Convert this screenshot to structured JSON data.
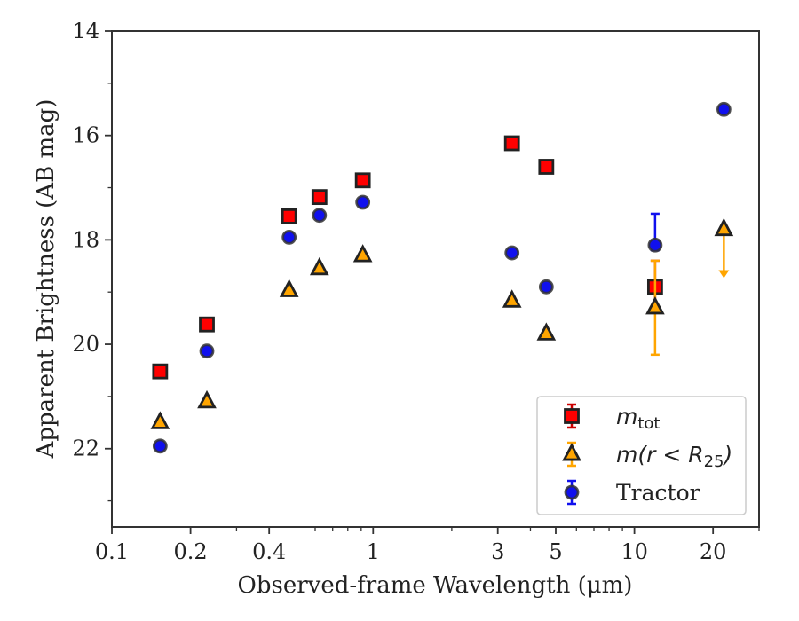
{
  "chart_data": {
    "type": "scatter",
    "xlabel": "Observed-frame Wavelength (μm)",
    "ylabel": "Apparent Brightness (AB mag)",
    "x_scale": "log",
    "xlim": [
      0.1,
      30
    ],
    "ylim": [
      23.5,
      14
    ],
    "y_inverted": true,
    "grid": false,
    "legend_position": "bottom-right",
    "x_ticks": [
      {
        "value": 0.1,
        "label": "0.1"
      },
      {
        "value": 0.2,
        "label": "0.2"
      },
      {
        "value": 0.4,
        "label": "0.4"
      },
      {
        "value": 1,
        "label": "1"
      },
      {
        "value": 3,
        "label": "3"
      },
      {
        "value": 5,
        "label": "5"
      },
      {
        "value": 10,
        "label": "10"
      },
      {
        "value": 20,
        "label": "20"
      }
    ],
    "y_ticks": [
      {
        "value": 14,
        "label": "14"
      },
      {
        "value": 16,
        "label": "16"
      },
      {
        "value": 18,
        "label": "18"
      },
      {
        "value": 20,
        "label": "20"
      },
      {
        "value": 22,
        "label": "22"
      }
    ],
    "series": [
      {
        "name": "m_tot",
        "marker": "square",
        "color": "#ff0000",
        "edge_color": "#222222",
        "error_color": "#cc0000",
        "points": [
          {
            "x": 0.153,
            "y": 20.52
          },
          {
            "x": 0.231,
            "y": 19.62
          },
          {
            "x": 0.477,
            "y": 17.55
          },
          {
            "x": 0.623,
            "y": 17.18
          },
          {
            "x": 0.913,
            "y": 16.86
          },
          {
            "x": 3.4,
            "y": 16.15
          },
          {
            "x": 4.6,
            "y": 16.6
          },
          {
            "x": 12.0,
            "y": 18.9,
            "err_low": 0.5,
            "err_high": 0.5
          }
        ]
      },
      {
        "name": "m(r < R25)",
        "marker": "triangle",
        "color": "#ffa500",
        "edge_color": "#222222",
        "error_color": "#ffa500",
        "points": [
          {
            "x": 0.153,
            "y": 21.5
          },
          {
            "x": 0.231,
            "y": 21.1
          },
          {
            "x": 0.477,
            "y": 18.97
          },
          {
            "x": 0.623,
            "y": 18.55
          },
          {
            "x": 0.913,
            "y": 18.3
          },
          {
            "x": 3.4,
            "y": 19.17
          },
          {
            "x": 4.6,
            "y": 19.8
          },
          {
            "x": 12.0,
            "y": 19.3,
            "err_low": 0.9,
            "err_high": 0.9
          },
          {
            "x": 22.0,
            "y": 17.8,
            "upper_limit_to": 18.7
          }
        ]
      },
      {
        "name": "Tractor",
        "marker": "circle",
        "color": "#1010ee",
        "edge_color": "#333333",
        "error_color": "#1010ee",
        "points": [
          {
            "x": 0.153,
            "y": 21.95
          },
          {
            "x": 0.231,
            "y": 20.13
          },
          {
            "x": 0.477,
            "y": 17.95
          },
          {
            "x": 0.623,
            "y": 17.53
          },
          {
            "x": 0.913,
            "y": 17.28
          },
          {
            "x": 3.4,
            "y": 18.25
          },
          {
            "x": 4.6,
            "y": 18.9
          },
          {
            "x": 12.0,
            "y": 18.1,
            "err_low": 0.6,
            "err_high": 0.1
          },
          {
            "x": 22.0,
            "y": 15.5
          }
        ]
      }
    ]
  },
  "legend": {
    "items": [
      {
        "base": "m",
        "sub": "tot",
        "key": "m_tot"
      },
      {
        "base": "m(r < R",
        "sub": "25",
        "suffix": ")",
        "key": "m_r25"
      },
      {
        "base": "Tractor",
        "sub": "",
        "key": "tractor"
      }
    ]
  }
}
